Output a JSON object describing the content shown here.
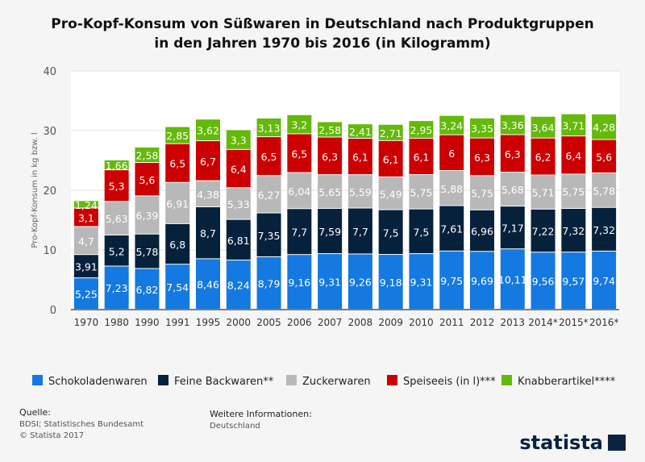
{
  "chart_data": {
    "type": "bar",
    "stacked": true,
    "title": "Pro-Kopf-Konsum von Süßwaren in Deutschland nach Produktgruppen in den Jahren 1970 bis 2016 (in Kilogramm)",
    "title_lines": [
      "Pro-Kopf-Konsum von Süßwaren in Deutschland nach Produktgruppen",
      "in den Jahren 1970 bis 2016 (in Kilogramm)"
    ],
    "ylabel": "Pro-Kopf-Konsum in kg bzw. l",
    "ylim": [
      0,
      40
    ],
    "yticks": [
      0,
      10,
      20,
      30,
      40
    ],
    "grid": true,
    "legend_position": "bottom",
    "categories": [
      "1970",
      "1980",
      "1990",
      "1991",
      "1995",
      "2000",
      "2005",
      "2006",
      "2007",
      "2008",
      "2009",
      "2010",
      "2011",
      "2012",
      "2013",
      "2014*",
      "2015*",
      "2016*"
    ],
    "series": [
      {
        "name": "Schokoladenwaren",
        "color": "#1479e0",
        "label_color": "#ffffff",
        "values": [
          5.25,
          7.23,
          6.82,
          7.54,
          8.46,
          8.24,
          8.79,
          9.16,
          9.31,
          9.26,
          9.18,
          9.31,
          9.75,
          9.69,
          10.11,
          9.56,
          9.57,
          9.74
        ]
      },
      {
        "name": "Feine Backwaren**",
        "color": "#06213b",
        "label_color": "#ffffff",
        "values": [
          3.91,
          5.2,
          5.78,
          6.8,
          8.7,
          6.81,
          7.35,
          7.7,
          7.59,
          7.7,
          7.5,
          7.5,
          7.61,
          6.96,
          7.17,
          7.22,
          7.32,
          7.32
        ]
      },
      {
        "name": "Zuckerwaren",
        "color": "#b8b8b8",
        "label_color": "#ffffff",
        "values": [
          4.7,
          5.63,
          6.39,
          6.91,
          4.38,
          5.33,
          6.27,
          6.04,
          5.65,
          5.59,
          5.49,
          5.75,
          5.88,
          5.75,
          5.68,
          5.71,
          5.75,
          5.78
        ]
      },
      {
        "name": "Speiseeis (in l)***",
        "color": "#cc0000",
        "label_color": "#ffffff",
        "values": [
          3.1,
          5.3,
          5.6,
          6.5,
          6.7,
          6.4,
          6.5,
          6.5,
          6.3,
          6.1,
          6.1,
          6.1,
          6,
          6.3,
          6.3,
          6.2,
          6.4,
          5.6
        ]
      },
      {
        "name": "Knabberartikel****",
        "color": "#64b90a",
        "label_color": "#ffffff",
        "values": [
          1.24,
          1.66,
          2.58,
          2.85,
          3.62,
          3.3,
          3.13,
          3.2,
          2.58,
          2.41,
          2.71,
          2.95,
          3.24,
          3.35,
          3.36,
          3.64,
          3.71,
          4.28
        ]
      }
    ]
  },
  "footer": {
    "source_label": "Quelle:",
    "source": "BDSI; Statistisches Bundesamt",
    "copyright": "© Statista 2017",
    "info_label": "Weitere Informationen:",
    "info": "Deutschland",
    "logo": "statista"
  }
}
